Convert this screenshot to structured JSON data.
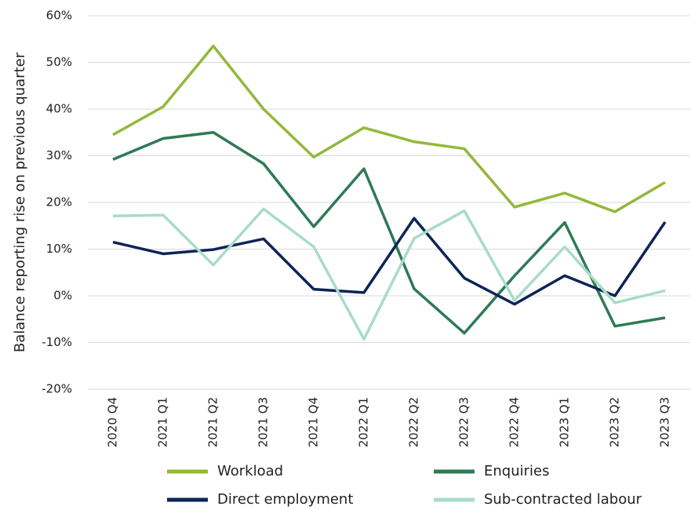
{
  "chart_data": {
    "type": "line",
    "y_label": "Balance reporting rise on previous quarter",
    "categories": [
      "2020 Q4",
      "2021 Q1",
      "2021 Q2",
      "2021 Q3",
      "2021 Q4",
      "2022 Q1",
      "2022 Q2",
      "2022 Q3",
      "2022 Q4",
      "2023 Q1",
      "2023 Q2",
      "2023 Q3"
    ],
    "series": [
      {
        "name": "Workload",
        "color": "#93b83a",
        "values": [
          34.5,
          40.5,
          53.5,
          40,
          29.7,
          36,
          33,
          31.5,
          19,
          22,
          18,
          24.3
        ]
      },
      {
        "name": "Enquiries",
        "color": "#2e7a55",
        "values": [
          29.2,
          33.7,
          35,
          28.3,
          14.8,
          27.2,
          1.5,
          -8,
          4.3,
          15.7,
          -6.5,
          -4.7
        ]
      },
      {
        "name": "Direct employment",
        "color": "#0d2456",
        "values": [
          11.5,
          9,
          9.9,
          12.2,
          1.4,
          0.7,
          16.6,
          3.8,
          -1.8,
          4.3,
          0,
          15.8
        ]
      },
      {
        "name": "Sub-contracted labour",
        "color": "#a8dcc8",
        "values": [
          17.1,
          17.3,
          6.6,
          18.6,
          10.5,
          -9.3,
          12.3,
          18.2,
          -1,
          10.5,
          -1.5,
          1.1
        ]
      }
    ],
    "ylim": [
      -20,
      60
    ],
    "yticks": [
      {
        "value": -20,
        "label": "-20%"
      },
      {
        "value": -10,
        "label": "-10%"
      },
      {
        "value": 0,
        "label": "0%"
      },
      {
        "value": 10,
        "label": "10%"
      },
      {
        "value": 20,
        "label": "20%"
      },
      {
        "value": 30,
        "label": "30%"
      },
      {
        "value": 40,
        "label": "40%"
      },
      {
        "value": 50,
        "label": "50%"
      },
      {
        "value": 60,
        "label": "60%"
      }
    ],
    "grid": true,
    "legend": "bottom"
  }
}
